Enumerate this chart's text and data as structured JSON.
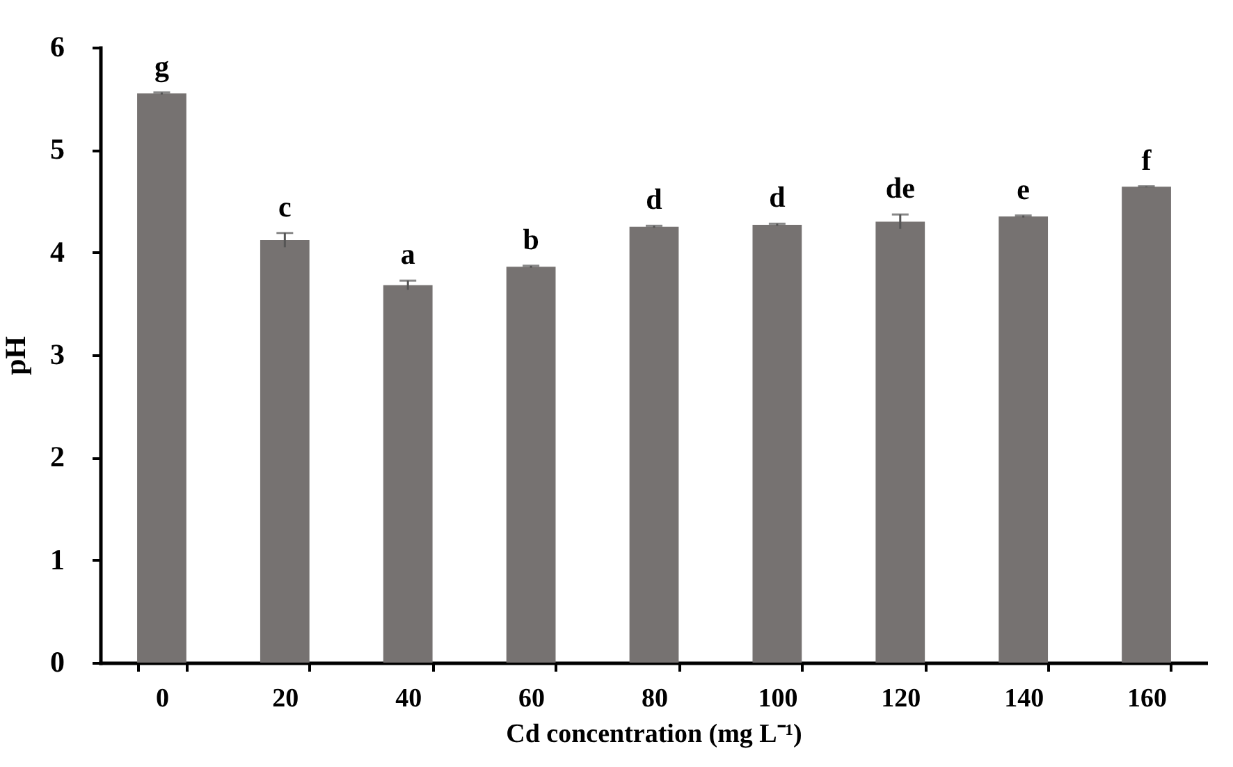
{
  "chart_data": {
    "type": "bar",
    "xlabel": "Cd concentration (mg L⁻¹)",
    "ylabel": "pH",
    "categories": [
      "0",
      "20",
      "40",
      "60",
      "80",
      "100",
      "120",
      "140",
      "160"
    ],
    "values": [
      5.55,
      4.12,
      3.68,
      3.86,
      4.25,
      4.27,
      4.3,
      4.35,
      4.64
    ],
    "errors": [
      0.01,
      0.07,
      0.045,
      0.01,
      0.01,
      0.01,
      0.07,
      0.01,
      0.005
    ],
    "color": "#767271",
    "ylim": [
      0,
      6
    ],
    "yticks": [
      0,
      1,
      2,
      3,
      4,
      5,
      6
    ],
    "grid": false,
    "annotations": [
      {
        "text": "g",
        "x": "0",
        "y": 5.56
      },
      {
        "text": "c",
        "x": "20",
        "y": 4.19
      },
      {
        "text": "a",
        "x": "40",
        "y": 3.725
      },
      {
        "text": "b",
        "x": "60",
        "y": 3.87
      },
      {
        "text": "d",
        "x": "80",
        "y": 4.26
      },
      {
        "text": "d",
        "x": "100",
        "y": 4.28
      },
      {
        "text": "de",
        "x": "120",
        "y": 4.37
      },
      {
        "text": "e",
        "x": "140",
        "y": 4.36
      },
      {
        "text": "f",
        "x": "160",
        "y": 4.645
      }
    ]
  }
}
